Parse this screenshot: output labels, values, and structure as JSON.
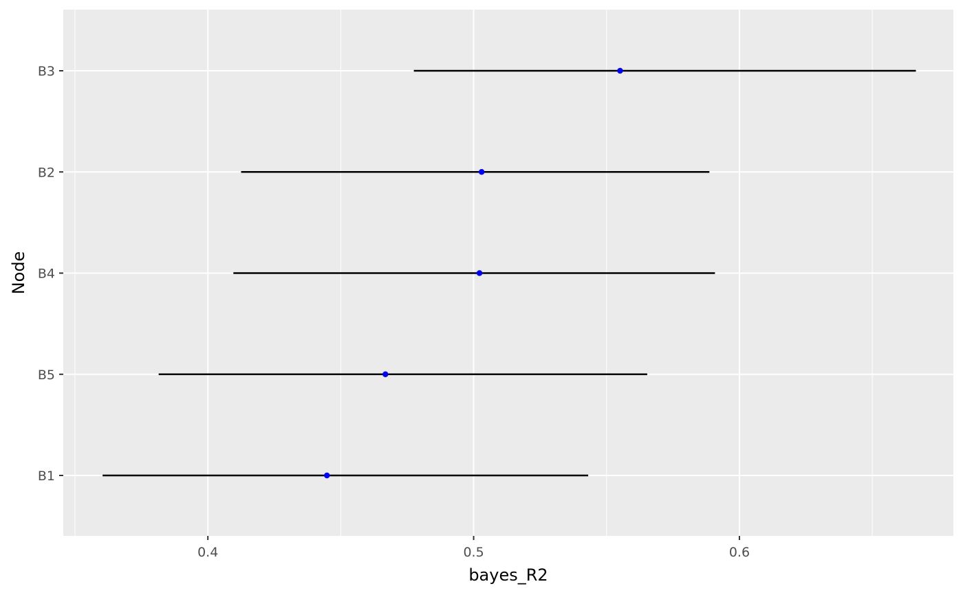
{
  "chart_data": {
    "type": "pointrange",
    "xlabel": "bayes_R2",
    "ylabel": "Node",
    "xlim": [
      0.3456,
      0.6805
    ],
    "x_ticks": [
      0.4,
      0.5,
      0.6
    ],
    "x_tick_labels": [
      "0.4",
      "0.5",
      "0.6"
    ],
    "categories": [
      "B1",
      "B5",
      "B4",
      "B2",
      "B3"
    ],
    "series": [
      {
        "estimate": [
          0.4448,
          0.4668,
          0.5022,
          0.503,
          0.5551
        ],
        "lower": [
          0.3604,
          0.3815,
          0.4096,
          0.4125,
          0.4775
        ],
        "upper": [
          0.5431,
          0.5653,
          0.5908,
          0.5887,
          0.6664
        ]
      }
    ],
    "point_color": "#0000ff",
    "interval_color": "#000000",
    "panel_background": "#ebebeb",
    "grid": true,
    "legend": "none"
  }
}
